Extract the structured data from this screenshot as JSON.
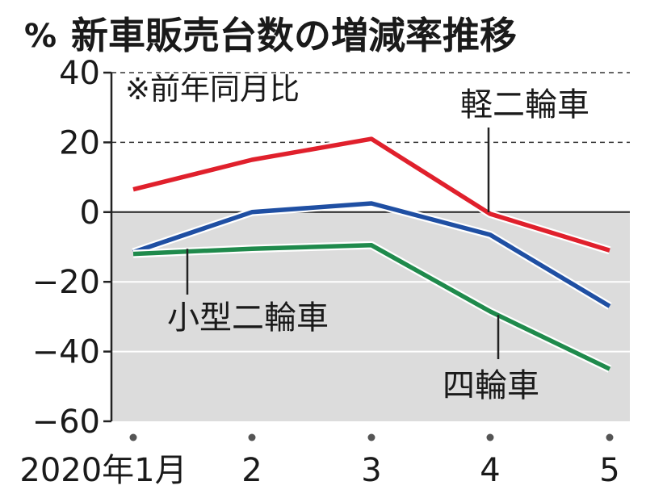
{
  "chart_data": {
    "type": "line",
    "title": "新車販売台数の増減率推移",
    "unit": "%",
    "note": "※前年同月比",
    "x": [
      "2020年1月",
      "2",
      "3",
      "4",
      "5"
    ],
    "ylim": [
      -60,
      40
    ],
    "yticks": [
      "40",
      "20",
      "0",
      "−20",
      "−40",
      "−60"
    ],
    "ytick_values": [
      40,
      20,
      0,
      -20,
      -40,
      -60
    ],
    "grid": "dashed at 20 and 40; shaded area below 0",
    "series": [
      {
        "name": "軽二輪車",
        "color": "#e0202c",
        "values": [
          6.5,
          15,
          21,
          -0.5,
          -11
        ]
      },
      {
        "name": "小型二輪車",
        "color": "#1f4fa3",
        "values": [
          -11.5,
          0,
          2.5,
          -6.5,
          -27
        ]
      },
      {
        "name": "四輪車",
        "color": "#1f8a4c",
        "values": [
          -12,
          -10.5,
          -9.5,
          -28.5,
          -45
        ]
      }
    ]
  }
}
